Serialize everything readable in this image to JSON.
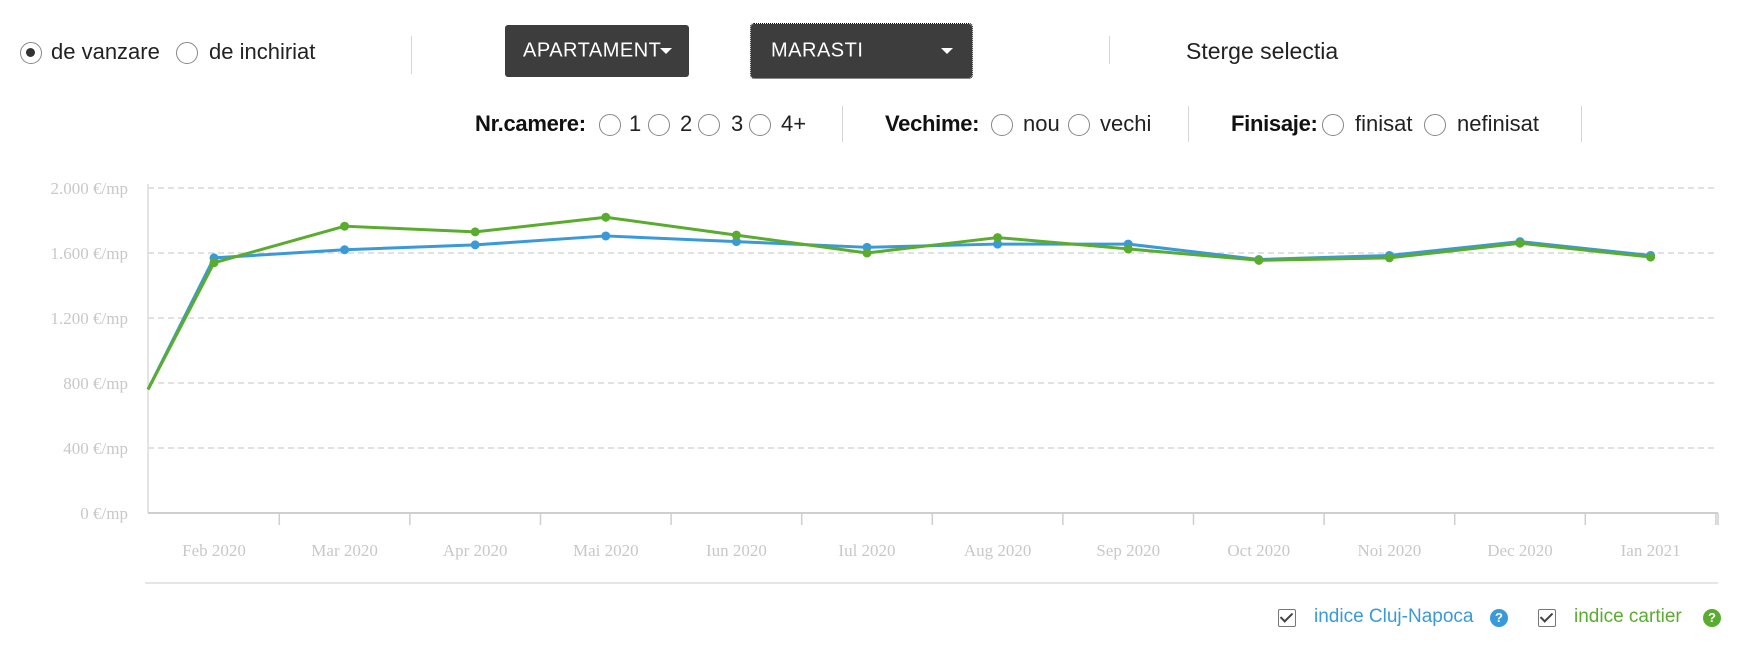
{
  "filters": {
    "transaction": [
      {
        "label": "de vanzare",
        "checked": true
      },
      {
        "label": "de inchiriat",
        "checked": false
      }
    ],
    "property_type": "APARTAMENT",
    "neighborhood": "MARASTI",
    "clear_label": "Sterge selectia",
    "rooms": {
      "label": "Nr.camere:",
      "options": [
        "1",
        "2",
        "3",
        "4+"
      ]
    },
    "age": {
      "label": "Vechime:",
      "options": [
        "nou",
        "vechi"
      ]
    },
    "finish": {
      "label": "Finisaje:",
      "options": [
        "finisat",
        "nefinisat"
      ]
    }
  },
  "legend": {
    "city": {
      "label": "indice Cluj-Napoca",
      "color": "#3a9ad9"
    },
    "district": {
      "label": "indice cartier",
      "color": "#5aac2e"
    }
  },
  "chart_data": {
    "type": "line",
    "categories": [
      "Feb 2020",
      "Mar 2020",
      "Apr 2020",
      "Mai 2020",
      "Iun 2020",
      "Iul 2020",
      "Aug 2020",
      "Sep 2020",
      "Oct 2020",
      "Noi 2020",
      "Dec 2020",
      "Ian 2021"
    ],
    "y_tick_labels": [
      "0 €/mp",
      "400 €/mp",
      "800 €/mp",
      "1.200 €/mp",
      "1.600 €/mp",
      "2.000 €/mp"
    ],
    "y_ticks": [
      0,
      400,
      800,
      1200,
      1600,
      2000
    ],
    "ylim": [
      0,
      2000
    ],
    "grid": true,
    "series": [
      {
        "name": "indice Cluj-Napoca",
        "color": "#3a9ad9",
        "start": 760,
        "values": [
          1570,
          1620,
          1650,
          1705,
          1670,
          1635,
          1655,
          1655,
          1560,
          1585,
          1670,
          1585
        ]
      },
      {
        "name": "indice cartier",
        "color": "#5aac2e",
        "start": 760,
        "values": [
          1540,
          1765,
          1730,
          1820,
          1710,
          1600,
          1695,
          1625,
          1555,
          1570,
          1660,
          1575
        ]
      }
    ]
  }
}
